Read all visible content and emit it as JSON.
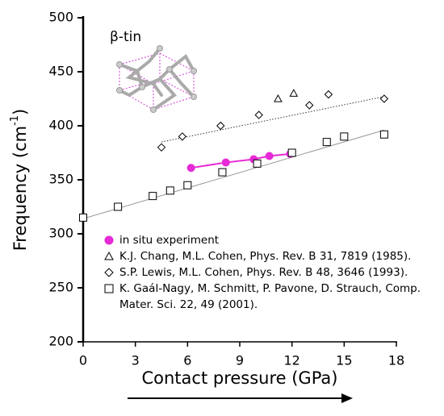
{
  "chart_data": {
    "type": "scatter",
    "xlabel": "Contact pressure (GPa)",
    "ylabel_parts": [
      "Frequency (cm",
      "-1",
      ")"
    ],
    "inset_label": "β-tin",
    "xlim": [
      0,
      18
    ],
    "xticks": [
      0,
      3,
      6,
      9,
      12,
      15,
      18
    ],
    "ylim": [
      200,
      500
    ],
    "yticks": [
      200,
      250,
      300,
      350,
      400,
      450,
      500
    ],
    "series": [
      {
        "name": "in situ experiment",
        "color": "#e62ad6",
        "marker": "circle",
        "line": true,
        "x": [
          6.2,
          8.2,
          9.8,
          10.7,
          11.9
        ],
        "values": [
          361,
          366,
          369,
          372,
          374
        ]
      },
      {
        "name": "K.J. Chang, M.L. Cohen, Phys. Rev. B 31, 7819 (1985).",
        "color": "#000000",
        "marker": "triangle",
        "x": [
          11.2,
          12.1
        ],
        "values": [
          425,
          430
        ]
      },
      {
        "name": "S.P. Lewis, M.L. Cohen, Phys. Rev. B 48, 3646 (1993).",
        "color": "#000000",
        "marker": "diamond",
        "x": [
          4.5,
          5.7,
          7.9,
          10.1,
          13.0,
          14.1,
          17.3
        ],
        "values": [
          380,
          390,
          400,
          410,
          419,
          429,
          425
        ]
      },
      {
        "name": "K. Gaál-Nagy, M. Schmitt, P. Pavone, D. Strauch, Comp. Mater. Sci. 22, 49 (2001).",
        "color": "#000000",
        "marker": "square",
        "x": [
          0,
          2,
          4,
          5,
          6,
          8,
          10,
          12,
          14,
          15,
          17.3
        ],
        "values": [
          315,
          325,
          335,
          340,
          345,
          357,
          365,
          375,
          385,
          390,
          392
        ]
      }
    ],
    "trend_lines": [
      {
        "color": "#999999",
        "dash": false,
        "x": [
          0,
          17.3
        ],
        "values": [
          314,
          396
        ]
      },
      {
        "color": "#333333",
        "dash": true,
        "x": [
          4.5,
          17.3
        ],
        "values": [
          385,
          427
        ]
      }
    ]
  }
}
